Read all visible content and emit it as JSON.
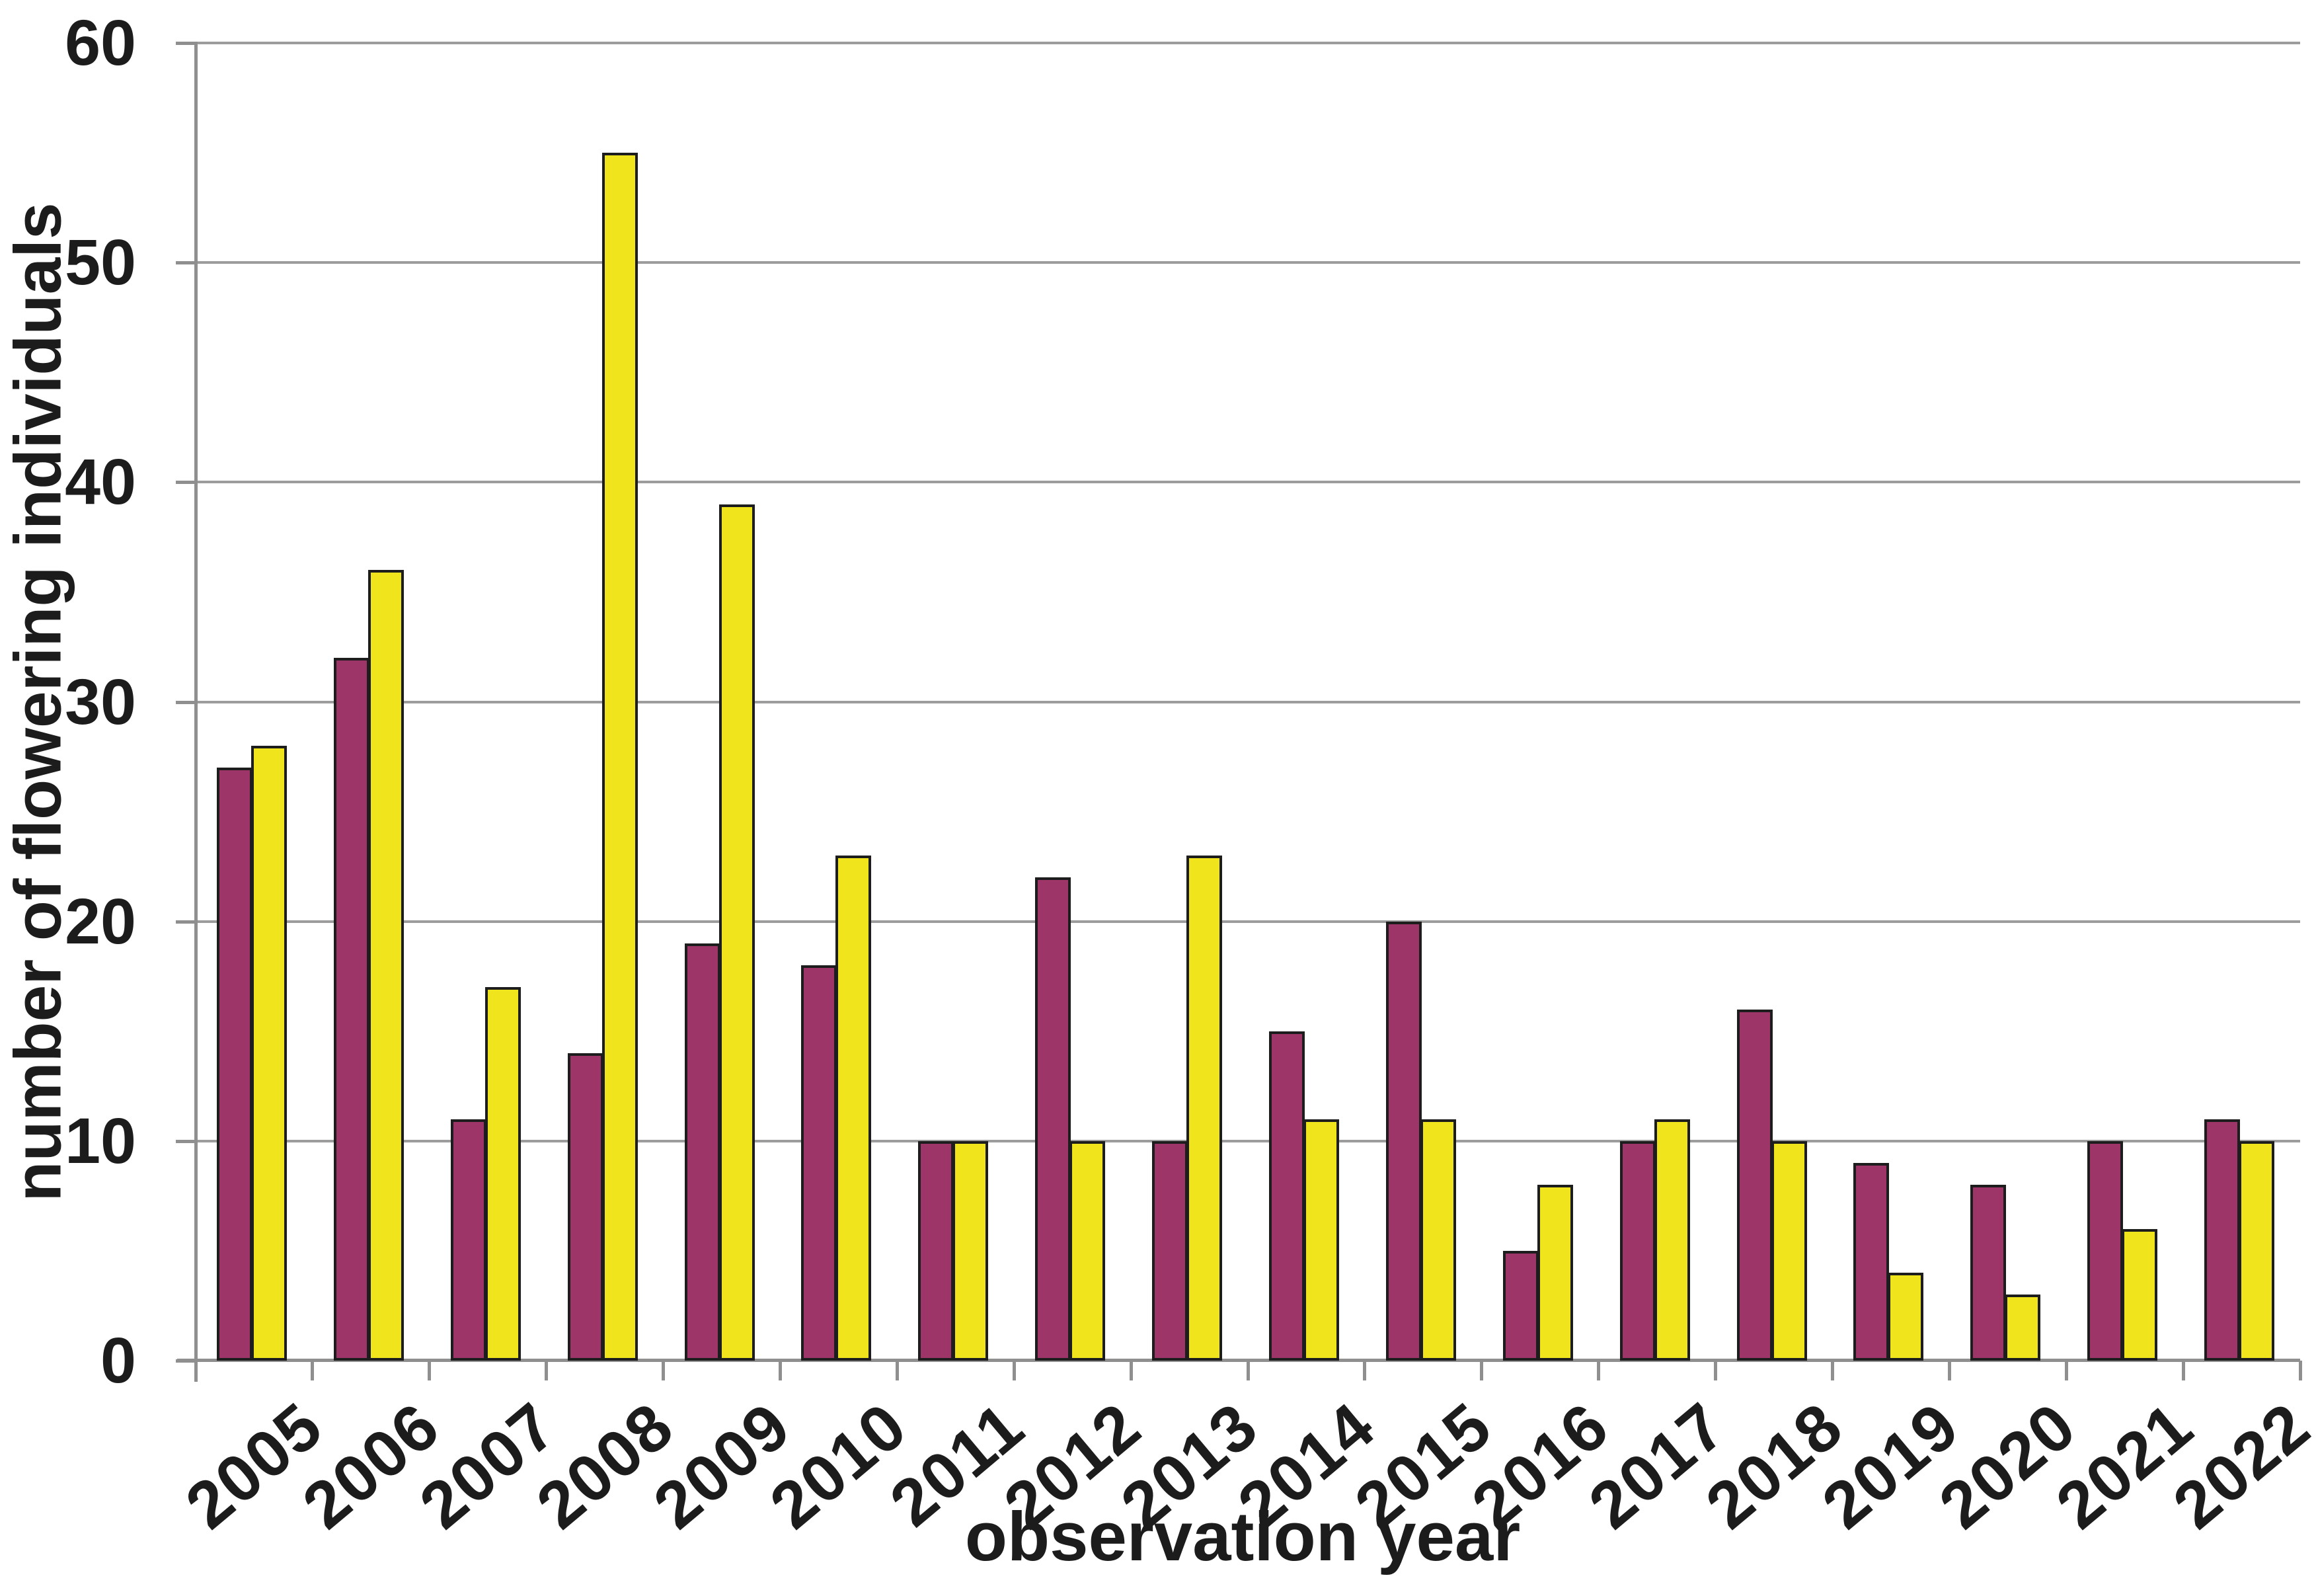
{
  "figure": {
    "y_axis_title": "number of flowering individuals",
    "x_axis_title": "observation year"
  },
  "chart_data": {
    "type": "bar",
    "title": "",
    "xlabel": "observation year",
    "ylabel": "number of flowering individuals",
    "categories": [
      "2005",
      "2006",
      "2007",
      "2008",
      "2009",
      "2010",
      "2011",
      "2012",
      "2013",
      "2014",
      "2015",
      "2016",
      "2017",
      "2018",
      "2019",
      "2020",
      "2021",
      "2022"
    ],
    "series": [
      {
        "name": "purple",
        "color": "#9D3569",
        "values": [
          27,
          32,
          11,
          14,
          19,
          18,
          10,
          22,
          10,
          15,
          20,
          5,
          10,
          16,
          9,
          8,
          10,
          11
        ]
      },
      {
        "name": "yellow",
        "color": "#F0E41C",
        "values": [
          28,
          36,
          17,
          55,
          39,
          23,
          10,
          10,
          23,
          11,
          11,
          8,
          11,
          10,
          4,
          3,
          6,
          10
        ]
      }
    ],
    "ylim": [
      0,
      60
    ],
    "yticks": [
      0,
      10,
      20,
      30,
      40,
      50,
      60
    ],
    "grid": true,
    "legend": "none",
    "bar_border_color": "#1d1d1d",
    "axis_color": "#8f8f8f",
    "gridline_color": "#9c9c9c",
    "xtick_label_rotation_deg": -40
  }
}
